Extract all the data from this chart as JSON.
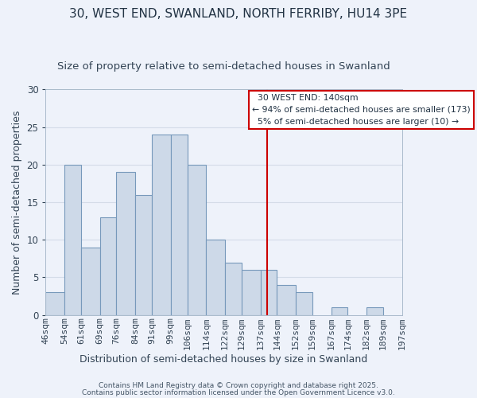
{
  "title": "30, WEST END, SWANLAND, NORTH FERRIBY, HU14 3PE",
  "subtitle": "Size of property relative to semi-detached houses in Swanland",
  "xlabel": "Distribution of semi-detached houses by size in Swanland",
  "ylabel": "Number of semi-detached properties",
  "bin_edges": [
    46,
    54,
    61,
    69,
    76,
    84,
    91,
    99,
    106,
    114,
    122,
    129,
    137,
    144,
    152,
    159,
    167,
    174,
    182,
    189,
    197
  ],
  "bar_heights": [
    3,
    20,
    9,
    13,
    19,
    16,
    24,
    24,
    20,
    10,
    7,
    6,
    6,
    4,
    3,
    0,
    1,
    0,
    1,
    0
  ],
  "bar_color": "#cdd9e8",
  "bar_edge_color": "#7799bb",
  "vline_x": 140,
  "vline_color": "#cc0000",
  "legend_title": "30 WEST END: 140sqm",
  "legend_line1": "← 94% of semi-detached houses are smaller (173)",
  "legend_line2": "5% of semi-detached houses are larger (10) →",
  "ylim": [
    0,
    30
  ],
  "yticks": [
    0,
    5,
    10,
    15,
    20,
    25,
    30
  ],
  "footnote1": "Contains HM Land Registry data © Crown copyright and database right 2025.",
  "footnote2": "Contains public sector information licensed under the Open Government Licence v3.0.",
  "grid_color": "#d4dce8",
  "background_color": "#eef2fa",
  "title_fontsize": 11,
  "subtitle_fontsize": 9.5,
  "axis_label_fontsize": 9,
  "tick_fontsize": 8,
  "footnote_fontsize": 6.5
}
